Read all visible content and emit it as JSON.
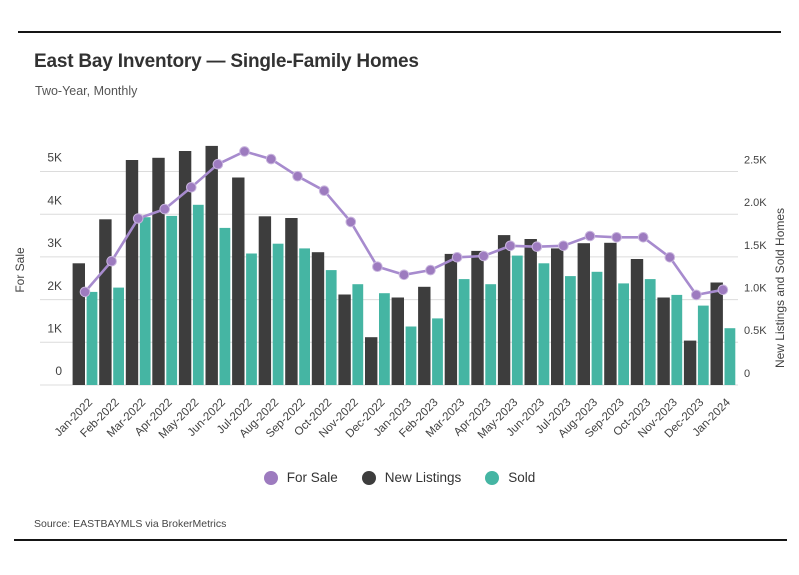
{
  "header": {
    "title": "East Bay Inventory — Single-Family Homes",
    "subtitle": "Two-Year, Monthly"
  },
  "footer": {
    "source": "Source: EASTBAYMLS via BrokerMetrics"
  },
  "legend": {
    "items": [
      {
        "label": "For Sale",
        "color": "#9d7bbf"
      },
      {
        "label": "New Listings",
        "color": "#3d3d3d"
      },
      {
        "label": "Sold",
        "color": "#45b5a3"
      }
    ]
  },
  "chart_data": {
    "type": "combo",
    "title": "East Bay Inventory — Single-Family Homes",
    "subtitle": "Two-Year, Monthly",
    "grid": true,
    "legend_position": "bottom",
    "categories": [
      "Jan-2022",
      "Feb-2022",
      "Mar-2022",
      "Apr-2022",
      "May-2022",
      "Jun-2022",
      "Jul-2022",
      "Aug-2022",
      "Sep-2022",
      "Oct-2022",
      "Nov-2022",
      "Dec-2022",
      "Jan-2023",
      "Feb-2023",
      "Mar-2023",
      "Apr-2023",
      "May-2023",
      "Jun-2023",
      "Jul-2023",
      "Aug-2023",
      "Sep-2023",
      "Oct-2023",
      "Nov-2023",
      "Dec-2023",
      "Jan-2024"
    ],
    "series": [
      {
        "name": "For Sale",
        "type": "line",
        "axis": "left",
        "color": "#a78bce",
        "marker_color": "#9d7bbf",
        "values": [
          2180,
          2900,
          3900,
          4120,
          4630,
          5170,
          5470,
          5290,
          4890,
          4550,
          3820,
          2770,
          2580,
          2690,
          2990,
          3020,
          3260,
          3240,
          3260,
          3490,
          3460,
          3460,
          2990,
          2110,
          2230
        ]
      },
      {
        "name": "New Listings",
        "type": "bar",
        "axis": "right",
        "color": "#3d3d3d",
        "values": [
          1425,
          1940,
          2635,
          2660,
          2740,
          2800,
          2430,
          1975,
          1955,
          1555,
          1060,
          560,
          1025,
          1150,
          1535,
          1570,
          1755,
          1710,
          1600,
          1660,
          1665,
          1475,
          1025,
          520,
          1200
        ]
      },
      {
        "name": "Sold",
        "type": "bar",
        "axis": "right",
        "color": "#45b5a3",
        "values": [
          1090,
          1140,
          1965,
          1980,
          2110,
          1840,
          1540,
          1655,
          1600,
          1345,
          1180,
          1075,
          685,
          780,
          1240,
          1180,
          1515,
          1425,
          1275,
          1325,
          1190,
          1240,
          1055,
          930,
          665
        ]
      }
    ],
    "left_axis": {
      "label": "For Sale",
      "tick_values": [
        0,
        1000,
        2000,
        3000,
        4000,
        5000
      ],
      "tick_labels": [
        "0",
        "1K",
        "2K",
        "3K",
        "4K",
        "5K"
      ],
      "ylim": [
        0,
        5600
      ]
    },
    "right_axis": {
      "label": "New Listings and Sold Homes",
      "tick_values": [
        0,
        500,
        1000,
        1500,
        2000,
        2500
      ],
      "tick_labels": [
        "0",
        "0.5K",
        "1.0K",
        "1.5K",
        "2.0K",
        "2.5K"
      ],
      "ylim": [
        0,
        2800
      ]
    }
  }
}
